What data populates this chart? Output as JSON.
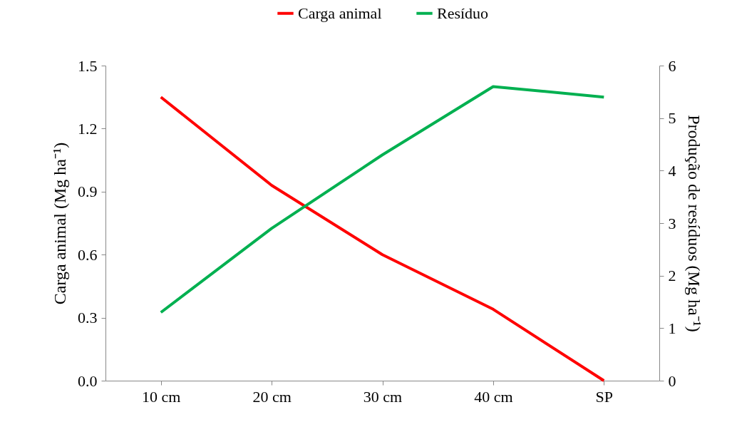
{
  "chart_data": {
    "type": "line",
    "categories": [
      "10 cm",
      "20 cm",
      "30 cm",
      "40 cm",
      "SP"
    ],
    "ylabel": "Carga animal (Mg ha⁻¹)",
    "y2label": "Produção de resíduos (Mg ha⁻¹)",
    "ylim": [
      0,
      1.5
    ],
    "yticks": [
      {
        "value": 0,
        "label": "0.0"
      },
      0.3,
      0.6,
      0.9,
      1.2,
      1.5
    ],
    "y2lim": [
      0,
      6
    ],
    "y2ticks": [
      0,
      1,
      2,
      3,
      4,
      5,
      6
    ],
    "series": [
      {
        "name": "Carga animal",
        "color": "#ff0000",
        "values": [
          1.35,
          0.93,
          0.6,
          0.34,
          0
        ]
      },
      {
        "name": "Resíduo",
        "color": "#00b050",
        "values": [
          1.3,
          2.9,
          4.3,
          5.6,
          5.4
        ],
        "axis": "y2"
      }
    ],
    "grid": false,
    "legend": "top",
    "marker": "none",
    "line_style": "solid"
  }
}
